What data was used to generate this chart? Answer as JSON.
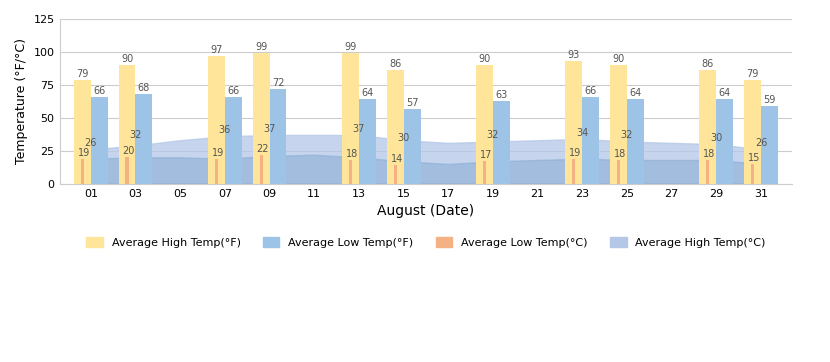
{
  "dates": [
    "01",
    "03",
    "05",
    "07",
    "09",
    "11",
    "13",
    "15",
    "17",
    "19",
    "21",
    "23",
    "25",
    "27",
    "29",
    "31"
  ],
  "bar_dates_idx": [
    0,
    1,
    3,
    4,
    6,
    7,
    9,
    11,
    12,
    14,
    15
  ],
  "avg_high_f": [
    79,
    90,
    97,
    99,
    99,
    86,
    90,
    93,
    90,
    86,
    79
  ],
  "avg_low_f": [
    66,
    68,
    66,
    72,
    64,
    57,
    63,
    66,
    64,
    64,
    59
  ],
  "avg_low_c": [
    19,
    20,
    19,
    22,
    18,
    14,
    17,
    19,
    18,
    18,
    15
  ],
  "avg_high_c": [
    26,
    32,
    36,
    37,
    37,
    30,
    32,
    34,
    32,
    30,
    26
  ],
  "area_x_idx": [
    0,
    1,
    2,
    3,
    4,
    5,
    6,
    7,
    8,
    9,
    10,
    11,
    12,
    13,
    14,
    15
  ],
  "area_high_c": [
    26,
    29,
    33,
    36,
    37,
    37,
    37,
    33,
    31,
    32,
    33,
    34,
    32,
    31,
    30,
    26
  ],
  "area_low_c": [
    19,
    20,
    20,
    19,
    21,
    22,
    20,
    17,
    15,
    17,
    18,
    19,
    18,
    18,
    18,
    15
  ],
  "color_high_f": "#FFE599",
  "color_low_f": "#9DC3E6",
  "color_low_c": "#F4B183",
  "color_area_high_c": "#AEC6E8",
  "color_area_low_c": "#C5D3EA",
  "ylabel": "Temperature (°F/°C)",
  "xlabel": "August (Date)",
  "ylim": [
    0,
    125
  ],
  "yticks": [
    0,
    25,
    50,
    75,
    100,
    125
  ],
  "legend_labels": [
    "Average High Temp(°F)",
    "Average Low Temp(°F)",
    "Average Low Temp(°C)",
    "Average High Temp(°C)"
  ]
}
